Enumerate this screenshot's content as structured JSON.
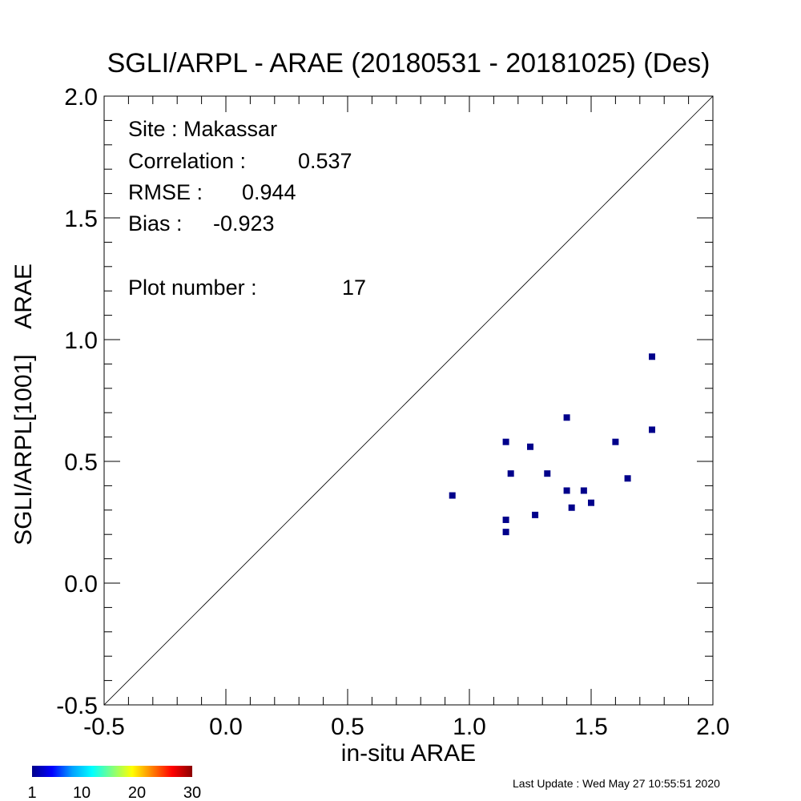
{
  "chart_data": {
    "type": "scatter",
    "title": "SGLI/ARPL - ARAE (20180531 - 20181025) (Des)",
    "xlabel": "in-situ ARAE",
    "ylabel": "SGLI/ARPL[1001]    ARAE",
    "xlim": [
      -0.5,
      2.0
    ],
    "ylim": [
      -0.5,
      2.0
    ],
    "x_ticks": [
      "-0.5",
      "0.0",
      "0.5",
      "1.0",
      "1.5",
      "2.0"
    ],
    "y_ticks": [
      "-0.5",
      "0.0",
      "0.5",
      "1.0",
      "1.5",
      "2.0"
    ],
    "one_to_one_line": true,
    "grid": false,
    "marker_color": "#00008b",
    "points": [
      {
        "x": 0.93,
        "y": 0.36
      },
      {
        "x": 1.15,
        "y": 0.58
      },
      {
        "x": 1.15,
        "y": 0.26
      },
      {
        "x": 1.15,
        "y": 0.21
      },
      {
        "x": 1.17,
        "y": 0.45
      },
      {
        "x": 1.25,
        "y": 0.56
      },
      {
        "x": 1.27,
        "y": 0.28
      },
      {
        "x": 1.32,
        "y": 0.45
      },
      {
        "x": 1.4,
        "y": 0.68
      },
      {
        "x": 1.4,
        "y": 0.38
      },
      {
        "x": 1.42,
        "y": 0.31
      },
      {
        "x": 1.47,
        "y": 0.38
      },
      {
        "x": 1.5,
        "y": 0.33
      },
      {
        "x": 1.6,
        "y": 0.58
      },
      {
        "x": 1.65,
        "y": 0.43
      },
      {
        "x": 1.75,
        "y": 0.93
      },
      {
        "x": 1.75,
        "y": 0.63
      }
    ],
    "annotations": {
      "site": "Site : Makassar",
      "correlation_label": "Correlation :",
      "correlation_value": "0.537",
      "rmse_label": "RMSE :",
      "rmse_value": "0.944",
      "bias_label": "Bias :",
      "bias_value": "-0.923",
      "plot_number_label": "Plot number :",
      "plot_number_value": "17"
    },
    "colorbar": {
      "tick_labels": [
        "1",
        "10",
        "20",
        "30"
      ],
      "colors": [
        "#00008b",
        "#0000ff",
        "#00a0ff",
        "#00ffff",
        "#80ff80",
        "#ffff00",
        "#ff8000",
        "#ff0000",
        "#8b0000"
      ]
    }
  },
  "footer": {
    "last_update": "Last Update : Wed May 27 10:55:51 2020"
  }
}
